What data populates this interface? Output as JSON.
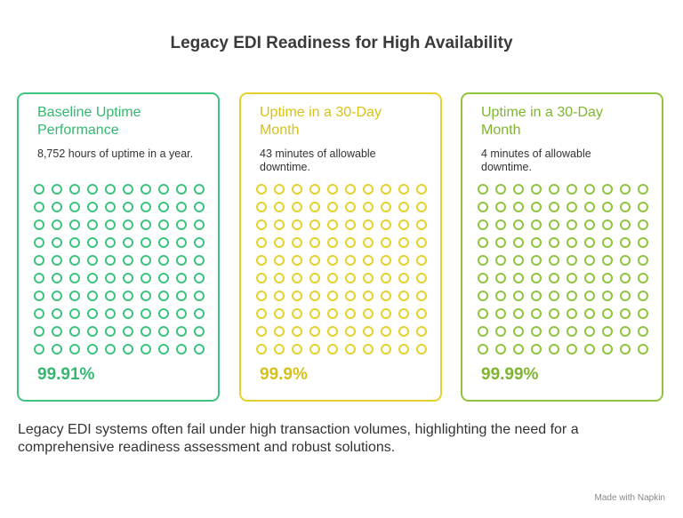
{
  "title": "Legacy EDI Readiness for High Availability",
  "cards": [
    {
      "title_lines": [
        "Baseline Uptime",
        "Performance"
      ],
      "description_lines": [
        "8,752 hours of uptime in a year."
      ],
      "value": "99.91%",
      "color": "#3dc47e",
      "text_color": "#34b870"
    },
    {
      "title_lines": [
        "Uptime in a 30-Day",
        "Month"
      ],
      "description_lines": [
        "43 minutes of allowable",
        "downtime."
      ],
      "value": "99.9%",
      "color": "#e3d12e",
      "text_color": "#d6c11a"
    },
    {
      "title_lines": [
        "Uptime in a 30-Day",
        "Month"
      ],
      "description_lines": [
        "4 minutes of allowable",
        "downtime."
      ],
      "value": "99.99%",
      "color": "#8fc43e",
      "text_color": "#7fb52f"
    }
  ],
  "footer_lines": [
    "Legacy EDI systems often fail under high transaction volumes, highlighting the need for a",
    "comprehensive readiness assessment and robust solutions."
  ],
  "watermark": "Made with Napkin"
}
